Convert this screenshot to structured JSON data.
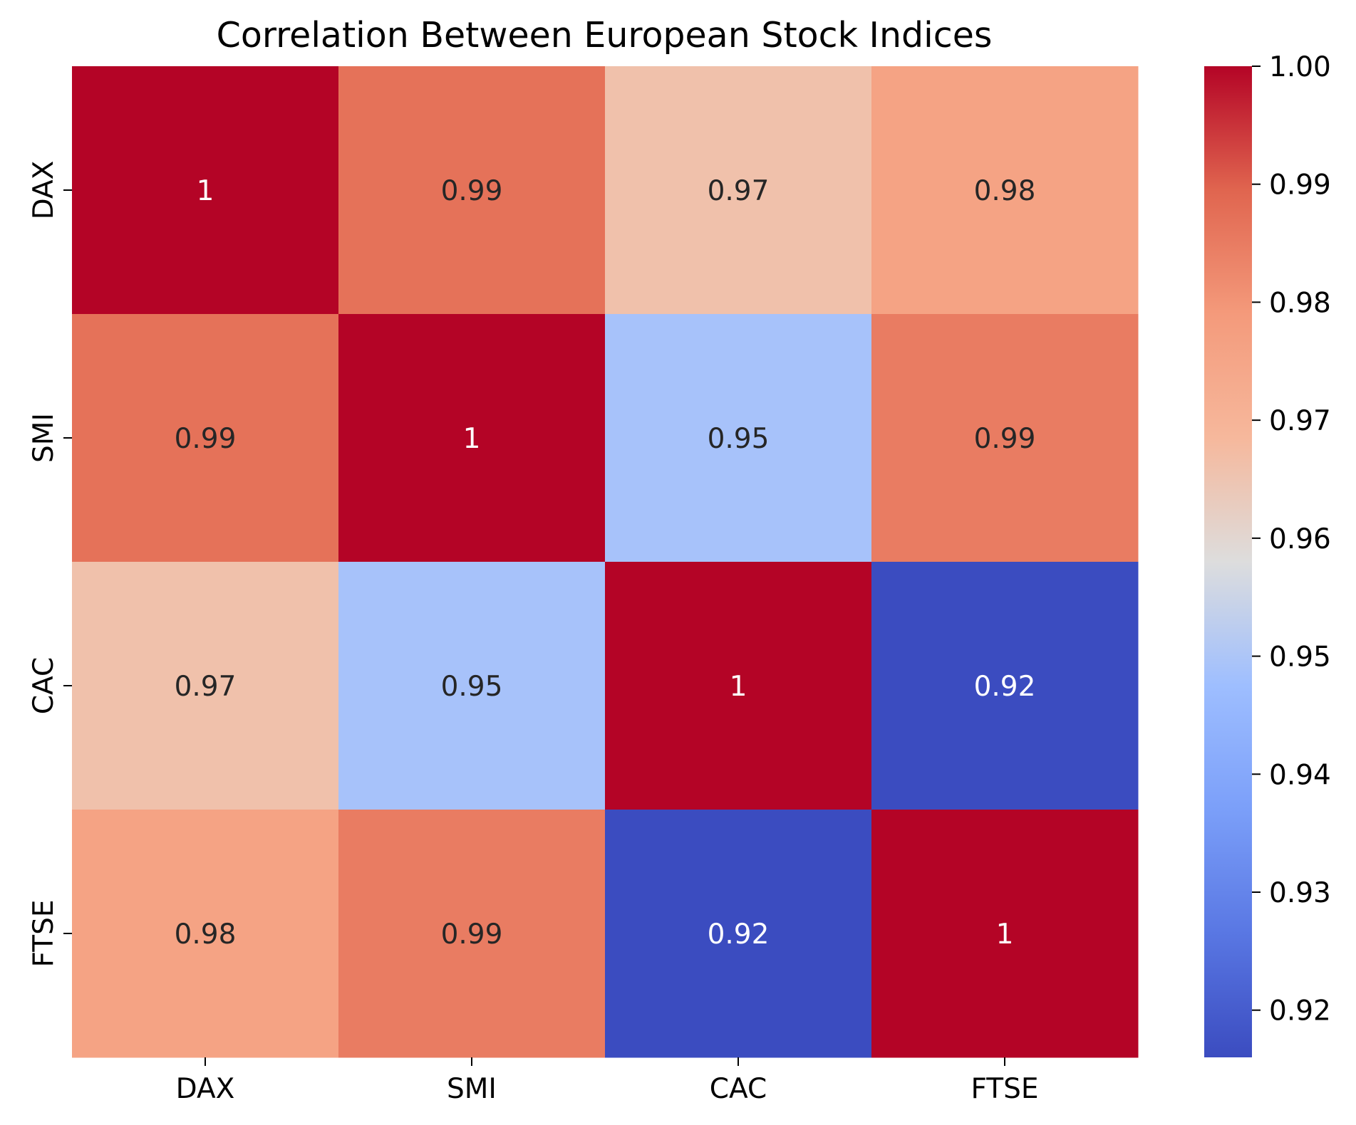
{
  "chart_data": {
    "type": "heatmap",
    "title": "Correlation Between European Stock Indices",
    "xlabel": "",
    "ylabel": "",
    "x_categories": [
      "DAX",
      "SMI",
      "CAC",
      "FTSE"
    ],
    "y_categories": [
      "DAX",
      "SMI",
      "CAC",
      "FTSE"
    ],
    "values": [
      [
        1.0,
        0.987,
        0.966,
        0.976
      ],
      [
        0.987,
        1.0,
        0.949,
        0.985
      ],
      [
        0.966,
        0.949,
        1.0,
        0.916
      ],
      [
        0.976,
        0.985,
        0.916,
        1.0
      ]
    ],
    "annotations": [
      [
        "1",
        "0.99",
        "0.97",
        "0.98"
      ],
      [
        "0.99",
        "1",
        "0.95",
        "0.99"
      ],
      [
        "0.97",
        "0.95",
        "1",
        "0.92"
      ],
      [
        "0.98",
        "0.99",
        "0.92",
        "1"
      ]
    ],
    "colorscale": "coolwarm",
    "colorbar": {
      "vmin": 0.916,
      "vmax": 1.0,
      "ticks": [
        0.92,
        0.93,
        0.94,
        0.95,
        0.96,
        0.97,
        0.98,
        0.99,
        1.0
      ],
      "tick_labels": [
        "0.92",
        "0.93",
        "0.94",
        "0.95",
        "0.96",
        "0.97",
        "0.98",
        "0.99",
        "1.00"
      ]
    },
    "grid": false,
    "legend": "colorbar-right"
  }
}
